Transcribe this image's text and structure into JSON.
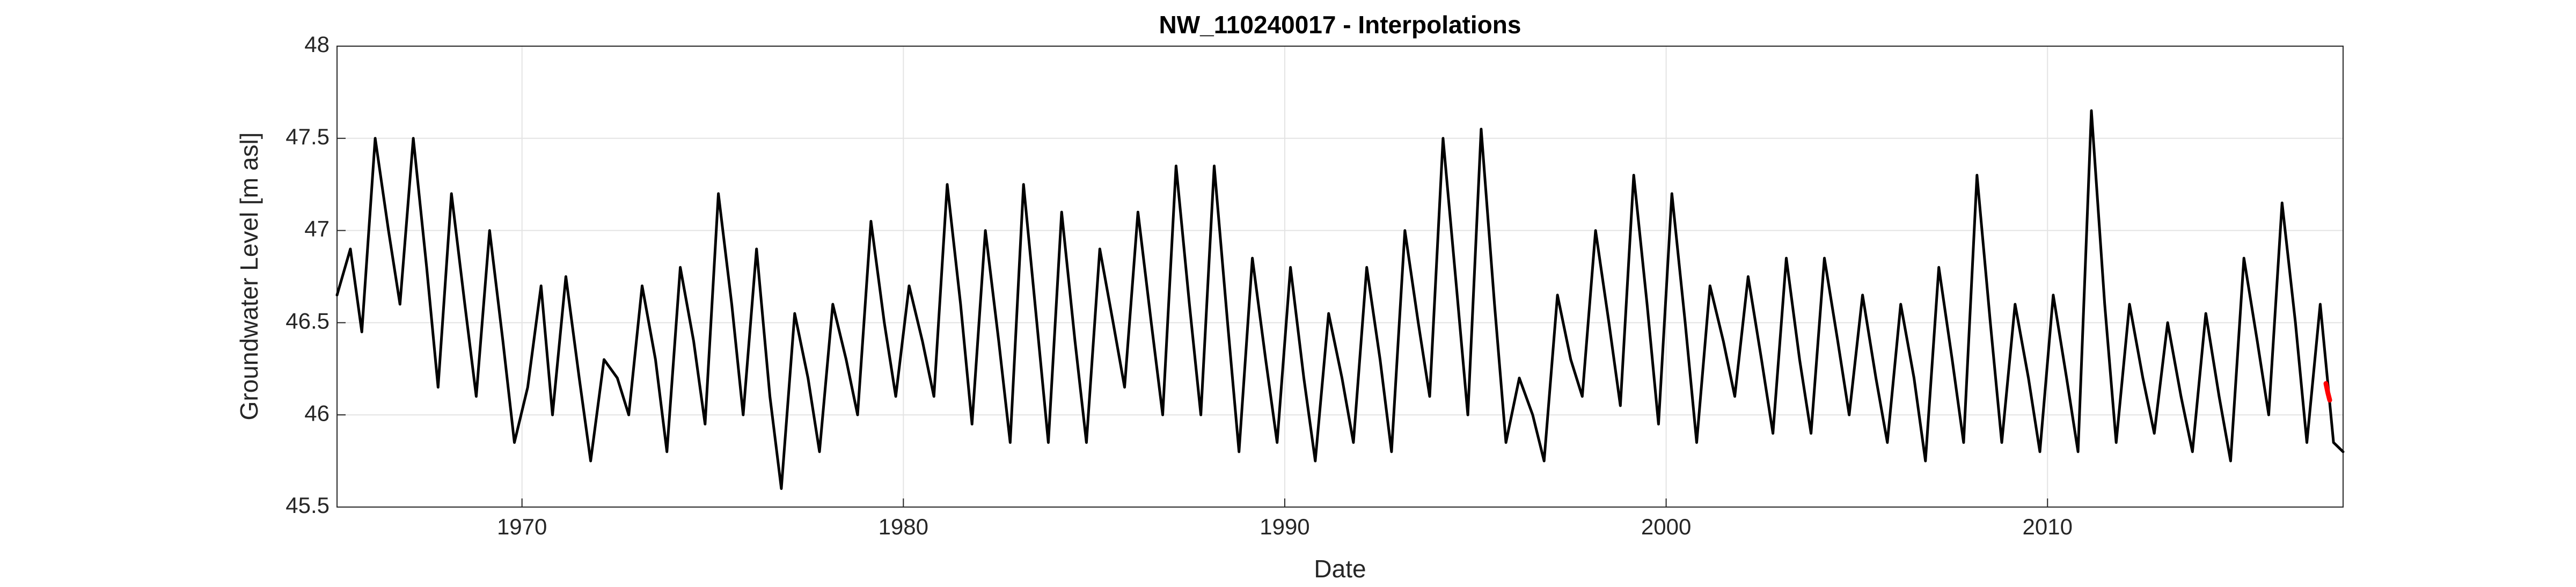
{
  "chart_data": {
    "type": "line",
    "title": "NW_110240017 - Interpolations",
    "xlabel": "Date",
    "ylabel": "Groundwater Level [m asl]",
    "xlim": [
      1965.15,
      2017.75
    ],
    "xticks": [
      1970,
      1980,
      1990,
      2000,
      2010
    ],
    "ylim": [
      45.5,
      48
    ],
    "yticks": [
      45.5,
      46,
      46.5,
      47,
      47.5,
      48
    ],
    "grid": true,
    "series": [
      {
        "color": "#000000",
        "x": [
          1965.15,
          1965.5,
          1965.8,
          1966.15,
          1966.5,
          1966.8,
          1967.15,
          1967.5,
          1967.8,
          1968.15,
          1968.5,
          1968.8,
          1969.15,
          1969.5,
          1969.8,
          1970.15,
          1970.5,
          1970.8,
          1971.15,
          1971.5,
          1971.8,
          1972.15,
          1972.5,
          1972.8,
          1973.15,
          1973.5,
          1973.8,
          1974.15,
          1974.5,
          1974.8,
          1975.15,
          1975.5,
          1975.8,
          1976.15,
          1976.5,
          1976.8,
          1977.15,
          1977.5,
          1977.8,
          1978.15,
          1978.5,
          1978.8,
          1979.15,
          1979.5,
          1979.8,
          1980.15,
          1980.5,
          1980.8,
          1981.15,
          1981.5,
          1981.8,
          1982.15,
          1982.5,
          1982.8,
          1983.15,
          1983.5,
          1983.8,
          1984.15,
          1984.5,
          1984.8,
          1985.15,
          1985.5,
          1985.8,
          1986.15,
          1986.5,
          1986.8,
          1987.15,
          1987.5,
          1987.8,
          1988.15,
          1988.5,
          1988.8,
          1989.15,
          1989.5,
          1989.8,
          1990.15,
          1990.5,
          1990.8,
          1991.15,
          1991.5,
          1991.8,
          1992.15,
          1992.5,
          1992.8,
          1993.15,
          1993.5,
          1993.8,
          1994.15,
          1994.5,
          1994.8,
          1995.15,
          1995.5,
          1995.8,
          1996.15,
          1996.5,
          1996.8,
          1997.15,
          1997.5,
          1997.8,
          1998.15,
          1998.5,
          1998.8,
          1999.15,
          1999.5,
          1999.8,
          2000.15,
          2000.5,
          2000.8,
          2001.15,
          2001.5,
          2001.8,
          2002.15,
          2002.5,
          2002.8,
          2003.15,
          2003.5,
          2003.8,
          2004.15,
          2004.5,
          2004.8,
          2005.15,
          2005.5,
          2005.8,
          2006.15,
          2006.5,
          2006.8,
          2007.15,
          2007.5,
          2007.8,
          2008.15,
          2008.5,
          2008.8,
          2009.15,
          2009.5,
          2009.8,
          2010.15,
          2010.5,
          2010.8,
          2011.15,
          2011.5,
          2011.8,
          2012.15,
          2012.5,
          2012.8,
          2013.15,
          2013.5,
          2013.8,
          2014.15,
          2014.5,
          2014.8,
          2015.15,
          2015.5,
          2015.8,
          2016.15,
          2016.5,
          2016.8,
          2017.15,
          2017.5,
          2017.75
        ],
        "values": [
          46.65,
          46.9,
          46.45,
          47.5,
          47.0,
          46.6,
          47.5,
          46.8,
          46.15,
          47.2,
          46.6,
          46.1,
          47.0,
          46.4,
          45.85,
          46.15,
          46.7,
          46.0,
          46.75,
          46.2,
          45.75,
          46.3,
          46.2,
          46.0,
          46.7,
          46.3,
          45.8,
          46.8,
          46.4,
          45.95,
          47.2,
          46.6,
          46.0,
          46.9,
          46.1,
          45.6,
          46.55,
          46.2,
          45.8,
          46.6,
          46.3,
          46.0,
          47.05,
          46.5,
          46.1,
          46.7,
          46.4,
          46.1,
          47.25,
          46.6,
          45.95,
          47.0,
          46.4,
          45.85,
          47.25,
          46.5,
          45.85,
          47.1,
          46.4,
          45.85,
          46.9,
          46.5,
          46.15,
          47.1,
          46.5,
          46.0,
          47.35,
          46.6,
          46.0,
          47.35,
          46.5,
          45.8,
          46.85,
          46.3,
          45.85,
          46.8,
          46.2,
          45.75,
          46.55,
          46.2,
          45.85,
          46.8,
          46.3,
          45.8,
          47.0,
          46.5,
          46.1,
          47.5,
          46.7,
          46.0,
          47.55,
          46.6,
          45.85,
          46.2,
          46.0,
          45.75,
          46.65,
          46.3,
          46.1,
          47.0,
          46.5,
          46.05,
          47.3,
          46.6,
          45.95,
          47.2,
          46.5,
          45.85,
          46.7,
          46.4,
          46.1,
          46.75,
          46.3,
          45.9,
          46.85,
          46.3,
          45.9,
          46.85,
          46.4,
          46.0,
          46.65,
          46.2,
          45.85,
          46.6,
          46.2,
          45.75,
          46.8,
          46.3,
          45.85,
          47.3,
          46.5,
          45.85,
          46.6,
          46.2,
          45.8,
          46.65,
          46.2,
          45.8,
          47.65,
          46.6,
          45.85,
          46.6,
          46.2,
          45.9,
          46.5,
          46.1,
          45.8,
          46.55,
          46.1,
          45.75,
          46.85,
          46.4,
          46.0,
          47.15,
          46.5,
          45.85,
          46.6,
          45.85,
          45.8
        ]
      },
      {
        "color": "#ff0000",
        "x": [
          2017.3,
          2017.35,
          2017.4
        ],
        "values": [
          46.17,
          46.12,
          46.08
        ]
      }
    ]
  }
}
